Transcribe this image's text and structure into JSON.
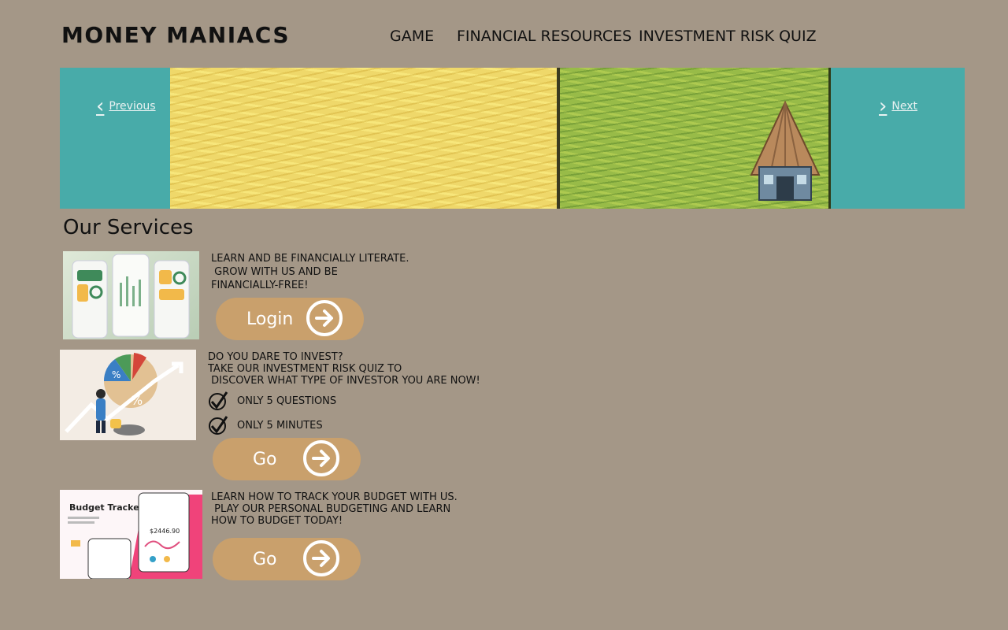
{
  "header": {
    "logo": "MONEY MANIACS",
    "nav": [
      {
        "label": "GAME"
      },
      {
        "label": "FINANCIAL RESOURCES"
      },
      {
        "label": "INVESTMENT RISK QUIZ"
      }
    ]
  },
  "hero": {
    "previous_label": "Previous",
    "next_label": "Next"
  },
  "services": {
    "heading": "Our Services",
    "items": [
      {
        "description": "LEARN AND BE FINANCIALLY LITERATE.\n GROW WITH US AND BE\nFINANCIALLY-FREE!",
        "button_label": "Login"
      },
      {
        "description": "DO YOU DARE TO INVEST?\nTAKE OUR INVESTMENT RISK QUIZ TO\n DISCOVER WHAT TYPE OF INVESTOR YOU ARE NOW!",
        "checks": [
          "ONLY 5 QUESTIONS",
          "ONLY 5  MINUTES"
        ],
        "button_label": "Go"
      },
      {
        "description": "LEARN HOW TO TRACK YOUR BUDGET WITH US.\n PLAY OUR PERSONAL BUDGETING AND LEARN\nHOW TO BUDGET TODAY!",
        "button_label": "Go",
        "thumb_title": "Budget\nTracker",
        "thumb_amount": "$2446.90"
      }
    ]
  },
  "colors": {
    "background": "#a49787",
    "hero_water": "#48aba9",
    "button": "#c9a06c"
  }
}
